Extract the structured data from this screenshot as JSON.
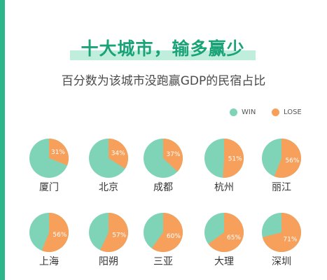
{
  "title": "十大城市，输多赢少",
  "subtitle": "百分数为该城市没跑赢GDP的民宿占比",
  "colors": {
    "win": "#7fd4b8",
    "lose": "#f6a05c",
    "accent": "#1aa377"
  },
  "legend": {
    "win": "WIN",
    "lose": "LOSE"
  },
  "chart_data": {
    "type": "pie",
    "series": [
      {
        "name": "WIN"
      },
      {
        "name": "LOSE"
      }
    ],
    "cities": [
      {
        "name": "厦门",
        "lose_label": "31%",
        "lose": 31
      },
      {
        "name": "北京",
        "lose_label": "34%",
        "lose": 34
      },
      {
        "name": "成都",
        "lose_label": "37%",
        "lose": 37
      },
      {
        "name": "杭州",
        "lose_label": "51%",
        "lose": 51
      },
      {
        "name": "丽江",
        "lose_label": "56%",
        "lose": 56
      },
      {
        "name": "上海",
        "lose_label": "56%",
        "lose": 56
      },
      {
        "name": "阳朔",
        "lose_label": "57%",
        "lose": 57
      },
      {
        "name": "三亚",
        "lose_label": "60%",
        "lose": 60
      },
      {
        "name": "大理",
        "lose_label": "65%",
        "lose": 65
      },
      {
        "name": "深圳",
        "lose_label": "71%",
        "lose": 71
      }
    ]
  }
}
